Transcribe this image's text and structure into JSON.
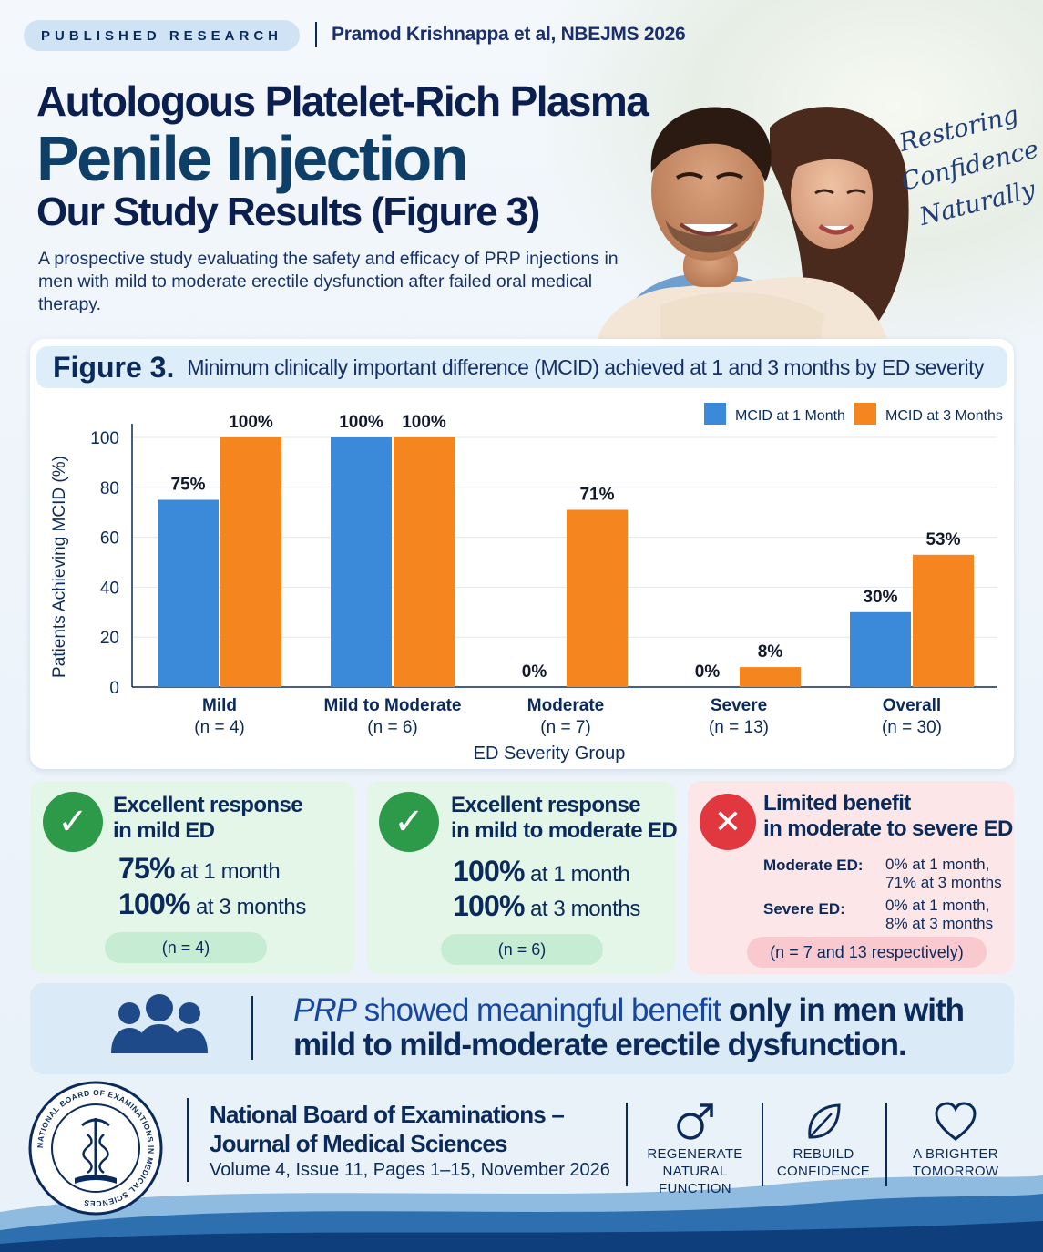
{
  "header": {
    "badge": "PUBLISHED RESEARCH",
    "citation": "Pramod Krishnappa et al, NBEJMS 2026",
    "title_line1": "Autologous Platelet-Rich Plasma",
    "title_line2": "Penile Injection",
    "title_line3": "Our Study Results (Figure 3)",
    "intro": "A prospective study evaluating the safety and efficacy of PRP injections in men with mild to moderate erectile dysfunction after failed oral medical therapy.",
    "tagline": [
      "Restoring",
      "Confidence",
      "Naturally"
    ]
  },
  "figure": {
    "label": "Figure 3.",
    "caption": "Minimum clinically important difference (MCID) achieved at 1 and 3 months by ED severity"
  },
  "chart_data": {
    "type": "bar",
    "title": "",
    "xlabel": "ED Severity Group",
    "ylabel": "Patients Achieving MCID (%)",
    "ylim": [
      0,
      100
    ],
    "yticks": [
      0,
      20,
      40,
      60,
      80,
      100
    ],
    "grid": true,
    "legend_position": "top-right",
    "categories": [
      "Mild",
      "Mild to Moderate",
      "Moderate",
      "Severe",
      "Overall"
    ],
    "category_n": [
      "(n = 4)",
      "(n = 6)",
      "(n = 7)",
      "(n = 13)",
      "(n = 30)"
    ],
    "series": [
      {
        "name": "MCID at 1 Month",
        "color": "#3b8ad9",
        "values": [
          75,
          100,
          0,
          0,
          30
        ],
        "labels": [
          "75%",
          "100%",
          "0%",
          "0%",
          "30%"
        ]
      },
      {
        "name": "MCID at 3 Months",
        "color": "#f5861f",
        "values": [
          100,
          100,
          71,
          8,
          53
        ],
        "labels": [
          "100%",
          "100%",
          "71%",
          "8%",
          "53%"
        ]
      }
    ]
  },
  "cards": [
    {
      "title_line1": "Excellent response",
      "title_line2": "in mild ED",
      "stat1_value": "75%",
      "stat1_text": "at 1 month",
      "stat2_value": "100%",
      "stat2_text": "at 3 months",
      "n": "(n = 4)"
    },
    {
      "title_line1": "Excellent response",
      "title_line2": "in mild to moderate ED",
      "stat1_value": "100%",
      "stat1_text": "at 1 month",
      "stat2_value": "100%",
      "stat2_text": "at 3 months",
      "n": "(n = 6)"
    },
    {
      "title_line1": "Limited benefit",
      "title_line2": "in moderate to severe ED",
      "moderate_label": "Moderate ED:",
      "moderate_line1": "0% at 1 month,",
      "moderate_line2": "71% at 3 months",
      "severe_label": "Severe ED:",
      "severe_line1": "0% at 1 month,",
      "severe_line2": "8% at 3 months",
      "n": "(n = 7 and 13 respectively)"
    }
  ],
  "conclusion": {
    "part1": "PRP",
    "part2": " showed meaningful benefit ",
    "part3": "only in men with",
    "part4": "mild to mild-moderate erectile dysfunction."
  },
  "footer": {
    "seal_text": "NATIONAL BOARD OF EXAMINATIONS IN MEDICAL SCIENCES",
    "journal_line1": "National Board of Examinations –",
    "journal_line2": "Journal of Medical Sciences",
    "volume": "Volume 4, Issue 11, Pages 1–15, November 2026",
    "pillars": [
      {
        "icon": "male-symbol-icon",
        "line1": "REGENERATE",
        "line2": "NATURAL FUNCTION"
      },
      {
        "icon": "leaf-icon",
        "line1": "REBUILD",
        "line2": "CONFIDENCE"
      },
      {
        "icon": "heart-icon",
        "line1": "A BRIGHTER",
        "line2": "TOMORROW"
      }
    ]
  },
  "colors": {
    "navy": "#0b2a5c",
    "blue_bar": "#3b8ad9",
    "orange_bar": "#f5861f",
    "green_check": "#2c9a49",
    "red_cross": "#e0383e"
  }
}
